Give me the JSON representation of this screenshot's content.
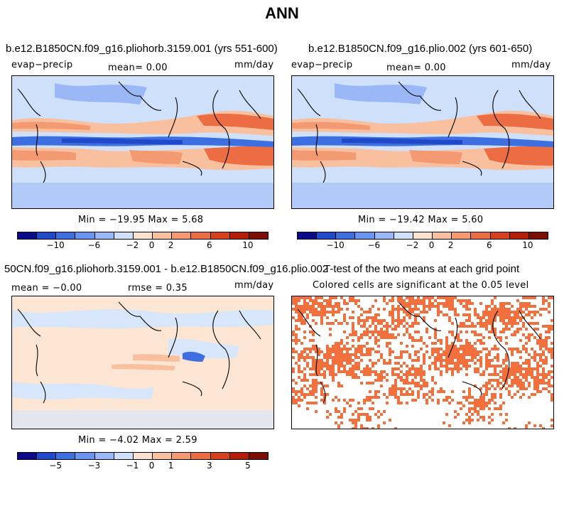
{
  "chart_data": {
    "type": "heatmap",
    "title": "ANN",
    "panels": [
      {
        "title": "b.e12.B1850CN.f09_g16.pliohorb.3159.001 (yrs 551-600)",
        "variable": "evap−precip",
        "stat_text": "mean=   0.00",
        "units": "mm/day",
        "minmax": "Min = −19.95 Max =   5.68",
        "min": -19.95,
        "max": 5.68,
        "mean": 0.0,
        "colorbar_ticks": [
          "−10",
          "−6",
          "−2",
          "0",
          "2",
          "6",
          "10"
        ]
      },
      {
        "title": "b.e12.B1850CN.f09_g16.plio.002 (yrs 601-650)",
        "variable": "evap−precip",
        "stat_text": "mean=   0.00",
        "units": "mm/day",
        "minmax": "Min = −19.42 Max =   5.60",
        "min": -19.42,
        "max": 5.6,
        "mean": 0.0,
        "colorbar_ticks": [
          "−10",
          "−6",
          "−2",
          "0",
          "2",
          "6",
          "10"
        ]
      },
      {
        "title": "50CN.f09_g16.pliohorb.3159.001 - b.e12.B1850CN.f09_g16.plio.002",
        "stat_text": "mean =  −0.00",
        "rmse_text": "rmse =   0.35",
        "units": "mm/day",
        "minmax": "Min =  −4.02 Max =   2.59",
        "min": -4.02,
        "max": 2.59,
        "mean": -0.0,
        "rmse": 0.35,
        "colorbar_ticks": [
          "−5",
          "−3",
          "−1",
          "0",
          "1",
          "3",
          "5"
        ]
      },
      {
        "title": "T-test of the two means at each grid point",
        "subtitle": "Colored cells are significant at the 0.05 level"
      }
    ],
    "colorbar_colors": [
      "#0a0a8a",
      "#1f49c8",
      "#3d6fe0",
      "#6a94f2",
      "#9ab8f6",
      "#cfe0fb",
      "#fbe1cf",
      "#f9c0a0",
      "#f49a72",
      "#ec6c44",
      "#d83f1f",
      "#b41d08",
      "#7d0c02"
    ]
  },
  "colors": {
    "ocean_neutral_left": "#d8e6fb",
    "ocean_neutral_diff": "#fde5d3",
    "significant": "#f2703e"
  }
}
